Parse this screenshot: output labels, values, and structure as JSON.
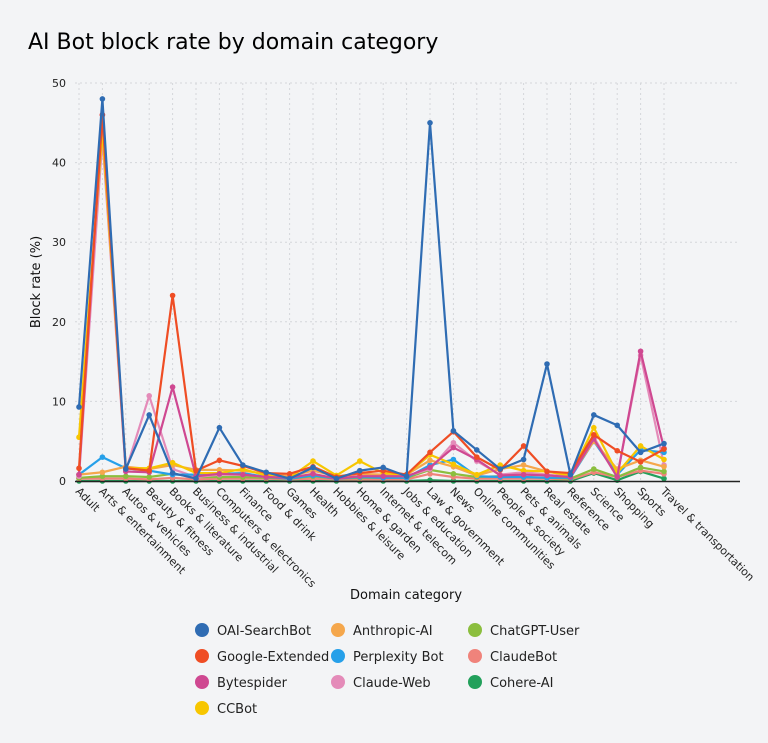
{
  "chart_data": {
    "type": "line",
    "title": "AI Bot block rate by domain category",
    "xlabel": "Domain category",
    "ylabel": "Block rate (%)",
    "ylim": [
      0,
      50
    ],
    "yticks": [
      0,
      10,
      20,
      30,
      40,
      50
    ],
    "grid": true,
    "legend_position": "bottom",
    "categories": [
      "Adult",
      "Arts & entertainment",
      "Autos & vehicles",
      "Beauty & fitness",
      "Books & literature",
      "Business & industrial",
      "Computers & electronics",
      "Finance",
      "Food & drink",
      "Games",
      "Health",
      "Hobbies & leisure",
      "Home & garden",
      "Internet & telecom",
      "Jobs & education",
      "Law & government",
      "News",
      "Online communities",
      "People & society",
      "Pets & animals",
      "Real estate",
      "Reference",
      "Science",
      "Shopping",
      "Sports",
      "Travel & transportation"
    ],
    "series": [
      {
        "name": "OAI-SearchBot",
        "color": "#2f6cb3",
        "values": [
          9.3,
          48,
          1.5,
          8.3,
          1.0,
          0.3,
          6.7,
          2.0,
          1.1,
          0.3,
          1.7,
          0.3,
          1.3,
          1.7,
          0.6,
          45,
          6.3,
          3.9,
          1.5,
          2.7,
          14.7,
          0.8,
          8.3,
          7.0,
          3.6,
          4.7
        ]
      },
      {
        "name": "Google-Extended",
        "color": "#ef4d24",
        "values": [
          1.6,
          46,
          1.6,
          1.3,
          23.3,
          1.3,
          2.6,
          1.9,
          1.0,
          0.9,
          1.8,
          0.5,
          1.0,
          1.3,
          0.8,
          3.6,
          6.2,
          3.0,
          1.4,
          4.4,
          1.2,
          1.0,
          5.8,
          3.8,
          2.4,
          4.0
        ]
      },
      {
        "name": "Bytespider",
        "color": "#cf4891",
        "values": [
          0.8,
          46,
          1.2,
          1.1,
          11.8,
          0.6,
          0.9,
          0.8,
          0.5,
          0.4,
          0.9,
          0.3,
          0.6,
          0.6,
          0.6,
          1.7,
          4.2,
          2.7,
          0.7,
          0.8,
          0.7,
          0.5,
          5.3,
          0.5,
          16.3,
          4.1
        ]
      },
      {
        "name": "CCBot",
        "color": "#f7c600",
        "values": [
          5.5,
          44,
          1.6,
          1.6,
          2.3,
          1.0,
          1.0,
          1.5,
          0.7,
          0.4,
          2.5,
          0.7,
          2.5,
          1.0,
          0.8,
          3.3,
          2.1,
          0.8,
          2.0,
          1.3,
          1.2,
          0.7,
          6.7,
          1.0,
          4.4,
          2.7
        ]
      },
      {
        "name": "Anthropic-AI",
        "color": "#f5a74c",
        "values": [
          0.8,
          1.1,
          1.8,
          1.5,
          2.0,
          1.4,
          1.4,
          1.3,
          0.9,
          0.6,
          1.3,
          0.6,
          0.9,
          0.8,
          0.8,
          2.6,
          1.8,
          0.7,
          1.5,
          2.0,
          1.2,
          0.6,
          5.0,
          1.5,
          2.6,
          1.8
        ]
      },
      {
        "name": "Perplexity Bot",
        "color": "#26a0e9",
        "values": [
          0.8,
          3.0,
          1.6,
          1.3,
          0.8,
          0.8,
          0.9,
          1.0,
          0.5,
          0.3,
          0.7,
          0.3,
          0.5,
          0.4,
          0.4,
          2.0,
          2.7,
          0.6,
          0.5,
          0.5,
          0.4,
          0.4,
          5.0,
          0.8,
          3.9,
          3.6
        ]
      },
      {
        "name": "Claude-Web",
        "color": "#e48bb9",
        "values": [
          0.6,
          43,
          1.3,
          10.7,
          1.5,
          0.5,
          0.8,
          0.8,
          0.5,
          0.4,
          0.8,
          0.3,
          0.6,
          0.6,
          0.6,
          1.5,
          4.8,
          2.5,
          0.8,
          1.1,
          0.8,
          0.5,
          5.5,
          0.6,
          15.8,
          2.0
        ]
      },
      {
        "name": "ChatGPT-User",
        "color": "#8bbe3e",
        "values": [
          0.4,
          0.6,
          0.6,
          0.5,
          0.9,
          0.5,
          0.5,
          0.5,
          0.4,
          0.3,
          0.6,
          0.3,
          0.4,
          0.4,
          0.4,
          1.4,
          0.9,
          0.5,
          0.6,
          0.5,
          0.4,
          0.3,
          1.5,
          0.5,
          1.7,
          1.2
        ]
      },
      {
        "name": "ClaudeBot",
        "color": "#f0837b",
        "values": [
          0.3,
          0.3,
          0.3,
          0.2,
          0.4,
          0.2,
          0.3,
          0.3,
          0.3,
          0.2,
          0.3,
          0.2,
          0.2,
          0.2,
          0.2,
          0.9,
          0.5,
          0.3,
          0.3,
          0.3,
          0.3,
          0.2,
          1.1,
          0.5,
          1.3,
          0.9
        ]
      },
      {
        "name": "Cohere-AI",
        "color": "#22a05b",
        "values": [
          0,
          0,
          0,
          0,
          0,
          0,
          0,
          0,
          0,
          0,
          0,
          0,
          0,
          0,
          0,
          0.1,
          0,
          0,
          0,
          0,
          0,
          0,
          1.0,
          0.1,
          1.2,
          0.3
        ]
      }
    ]
  }
}
